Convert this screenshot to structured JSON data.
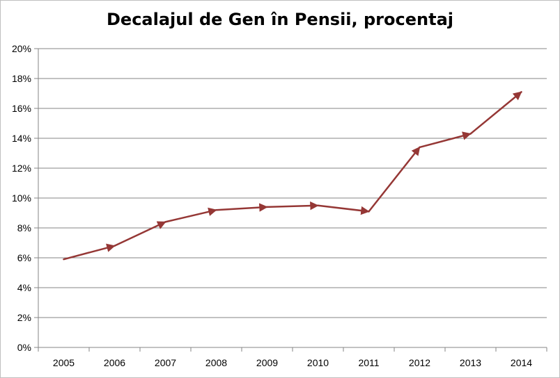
{
  "chart_data": {
    "type": "line",
    "title": "Decalajul de Gen în Pensii, procentaj",
    "xlabel": "",
    "ylabel": "",
    "categories": [
      "2005",
      "2006",
      "2007",
      "2008",
      "2009",
      "2010",
      "2011",
      "2012",
      "2013",
      "2014"
    ],
    "series": [
      {
        "values": [
          5.9,
          6.8,
          8.4,
          9.2,
          9.4,
          9.5,
          9.1,
          13.4,
          14.3,
          17.1
        ]
      }
    ],
    "ylim": [
      0,
      20
    ],
    "ytick_step": 2,
    "ytick_format": "percent",
    "grid": true,
    "legend": "none",
    "line_color": "#953735",
    "grid_color": "#868686",
    "markers": "arrowheads"
  }
}
